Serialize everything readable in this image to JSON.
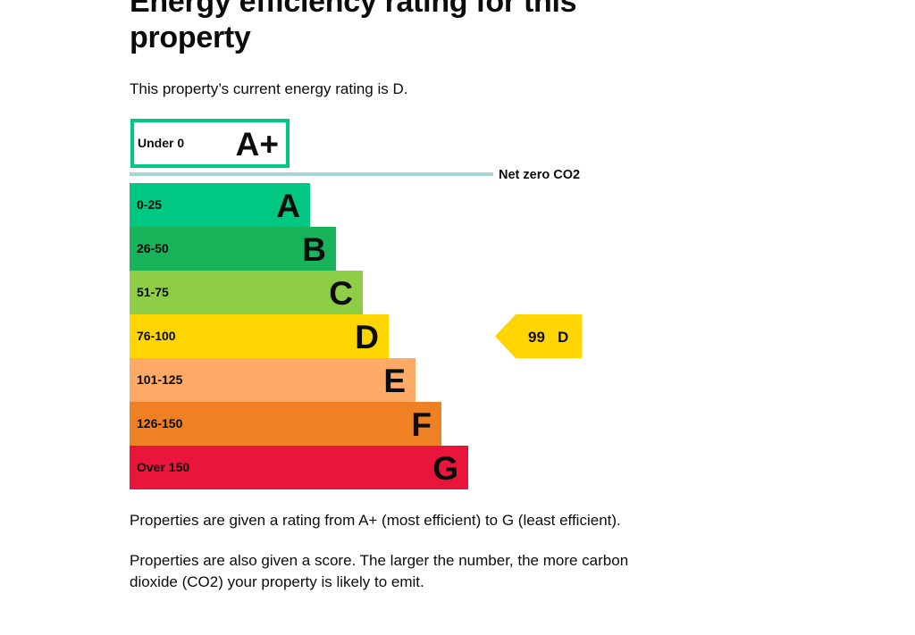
{
  "page": {
    "heading": "Energy efficiency rating for this property",
    "intro": "This property’s current energy rating is D.",
    "note_1": "Properties are given a rating from A+ (most efficient) to G (least efficient).",
    "note_2": "Properties are also given a score. The larger the number, the more carbon dioxide (CO2) your property is likely to emit."
  },
  "chart_data": {
    "type": "bar",
    "title": "",
    "categories": [
      "A+",
      "A",
      "B",
      "C",
      "D",
      "E",
      "F",
      "G"
    ],
    "bands": [
      {
        "rating": "A+",
        "range": "Under 0",
        "color": "#00c781",
        "outlined": true
      },
      {
        "rating": "A",
        "range": "0-25",
        "color": "#00c781"
      },
      {
        "rating": "B",
        "range": "26-50",
        "color": "#19b459"
      },
      {
        "rating": "C",
        "range": "51-75",
        "color": "#8dce46"
      },
      {
        "rating": "D",
        "range": "76-100",
        "color": "#ffd500"
      },
      {
        "rating": "E",
        "range": "101-125",
        "color": "#fcaa65"
      },
      {
        "rating": "F",
        "range": "126-150",
        "color": "#ef8023"
      },
      {
        "rating": "G",
        "range": "Over 150",
        "color": "#e9153b"
      }
    ],
    "net_zero_label": "Net zero CO2",
    "net_zero_color": "#a6d5d6",
    "current": {
      "score": "99",
      "rating": "D",
      "color": "#ffd500"
    }
  }
}
